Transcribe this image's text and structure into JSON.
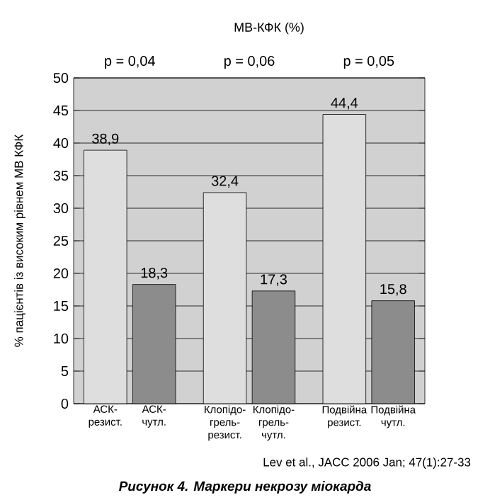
{
  "chart_data": {
    "type": "bar",
    "title": "МВ-КФК (%)",
    "ylabel": "% пацієнтів із високим рівнем МВ КФК",
    "categories": [
      "АСК-резист.",
      "АСК-чутл.",
      "Клопідо-грель-резист.",
      "Клопідо-грель-чутл.",
      "Подвійна резист.",
      "Подвійна чутл."
    ],
    "values": [
      38.9,
      18.3,
      32.4,
      17.3,
      44.4,
      15.8
    ],
    "colors": [
      "#dedede",
      "#8c8c8c",
      "#dedede",
      "#8c8c8c",
      "#dedede",
      "#8c8c8c"
    ],
    "value_labels": [
      "38,9",
      "18,3",
      "32,4",
      "17,3",
      "44,4",
      "15,8"
    ],
    "ylim": [
      0,
      50
    ],
    "yticks": [
      0,
      5,
      10,
      15,
      20,
      25,
      30,
      35,
      40,
      45,
      50
    ],
    "grid": "y",
    "annotations": [
      "p = 0,04",
      "p = 0,06",
      "p = 0,05",
      "Lev et al., JACC 2006 Jan; 47(1):27-33",
      "Рисунок 4. Маркери некрозу міокарда"
    ]
  }
}
